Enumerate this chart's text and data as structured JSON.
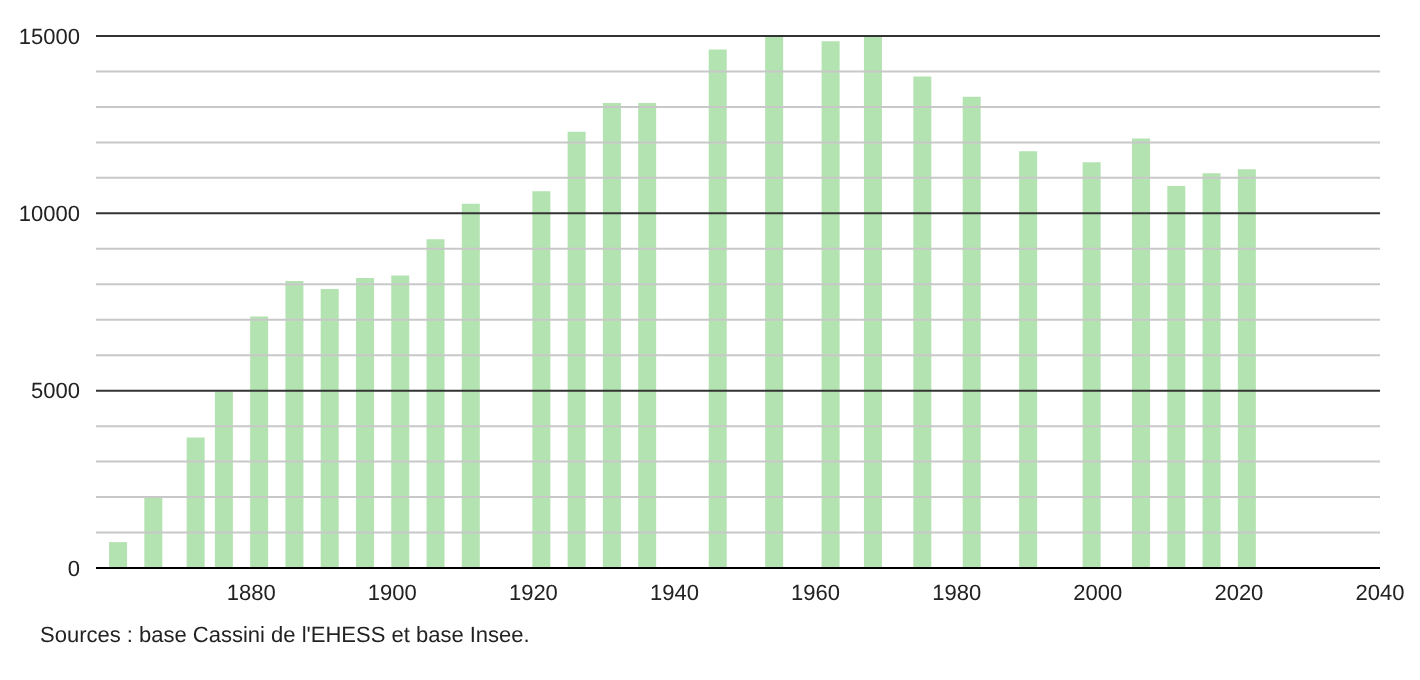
{
  "chart_data": {
    "type": "bar",
    "x": [
      1861,
      1866,
      1872,
      1876,
      1881,
      1886,
      1891,
      1896,
      1901,
      1906,
      1911,
      1921,
      1926,
      1931,
      1936,
      1946,
      1954,
      1962,
      1968,
      1975,
      1982,
      1990,
      1999,
      2006,
      2011,
      2016,
      2021
    ],
    "values": [
      730,
      2010,
      3680,
      4980,
      7090,
      8090,
      7870,
      8180,
      8250,
      9270,
      10270,
      10620,
      12300,
      13110,
      13110,
      14620,
      15000,
      14850,
      15000,
      13860,
      13290,
      11750,
      11440,
      12110,
      10770,
      11130,
      11240
    ],
    "color": "#b3e3b0",
    "xlim": [
      1858,
      2040
    ],
    "xticks": [
      1880,
      1900,
      1920,
      1940,
      1960,
      1980,
      2000,
      2020,
      2040
    ],
    "ylim": [
      0,
      15000
    ],
    "yticks": [
      0,
      {
        "value": 1000,
        "label": null
      },
      {
        "value": 2000,
        "label": null
      },
      {
        "value": 3000,
        "label": null
      },
      {
        "value": 4000,
        "label": null
      },
      5000,
      {
        "value": 6000,
        "label": null
      },
      {
        "value": 7000,
        "label": null
      },
      {
        "value": 8000,
        "label": null
      },
      {
        "value": 9000,
        "label": null
      },
      10000,
      {
        "value": 11000,
        "label": null
      },
      {
        "value": 12000,
        "label": null
      },
      {
        "value": 13000,
        "label": null
      },
      {
        "value": 14000,
        "label": null
      },
      15000
    ],
    "grid": "y",
    "annotations": [
      "Sources : base Cassini de l'EHESS et base Insee."
    ]
  }
}
